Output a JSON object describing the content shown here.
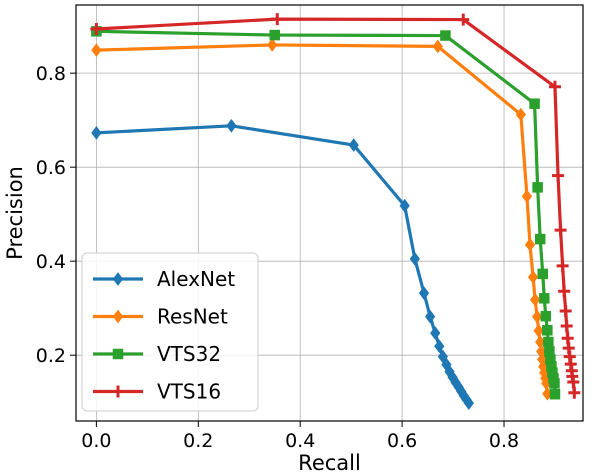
{
  "chart_data": {
    "type": "line",
    "xlabel": "Recall",
    "ylabel": "Precision",
    "xlim": [
      -0.04,
      0.955
    ],
    "ylim": [
      0.06,
      0.945
    ],
    "xticks": [
      0.0,
      0.2,
      0.4,
      0.6,
      0.8
    ],
    "xtick_labels": [
      "0.0",
      "0.2",
      "0.4",
      "0.6",
      "0.8"
    ],
    "yticks": [
      0.2,
      0.4,
      0.6,
      0.8
    ],
    "ytick_labels": [
      "0.2",
      "0.4",
      "0.6",
      "0.8"
    ],
    "grid": true,
    "legend_position": "lower-left",
    "series": [
      {
        "name": "AlexNet",
        "color": "#1f77b4",
        "marker": "diamond",
        "x": [
          0.0,
          0.265,
          0.505,
          0.605,
          0.625,
          0.643,
          0.655,
          0.665,
          0.673,
          0.68,
          0.687,
          0.693,
          0.699,
          0.705,
          0.711,
          0.716,
          0.721,
          0.726,
          0.731
        ],
        "y": [
          0.673,
          0.688,
          0.647,
          0.518,
          0.405,
          0.332,
          0.282,
          0.247,
          0.219,
          0.197,
          0.18,
          0.165,
          0.153,
          0.142,
          0.132,
          0.123,
          0.114,
          0.106,
          0.098
        ]
      },
      {
        "name": "ResNet",
        "color": "#ff7f0e",
        "marker": "diamond",
        "x": [
          0.0,
          0.345,
          0.67,
          0.833,
          0.845,
          0.851,
          0.857,
          0.861,
          0.865,
          0.868,
          0.871,
          0.873,
          0.875,
          0.877,
          0.879,
          0.881,
          0.883,
          0.885
        ],
        "y": [
          0.849,
          0.86,
          0.857,
          0.712,
          0.538,
          0.435,
          0.366,
          0.318,
          0.282,
          0.252,
          0.228,
          0.208,
          0.191,
          0.176,
          0.163,
          0.151,
          0.14,
          0.118
        ]
      },
      {
        "name": "VTS32",
        "color": "#2ca02c",
        "marker": "square",
        "x": [
          0.0,
          0.35,
          0.685,
          0.86,
          0.866,
          0.871,
          0.876,
          0.879,
          0.882,
          0.885,
          0.887,
          0.889,
          0.891,
          0.893,
          0.895,
          0.897,
          0.899,
          0.9
        ],
        "y": [
          0.889,
          0.881,
          0.88,
          0.735,
          0.557,
          0.447,
          0.373,
          0.321,
          0.283,
          0.253,
          0.228,
          0.208,
          0.191,
          0.176,
          0.163,
          0.151,
          0.14,
          0.117
        ]
      },
      {
        "name": "VTS16",
        "color": "#d62728",
        "marker": "plus",
        "x": [
          0.0,
          0.355,
          0.72,
          0.9,
          0.906,
          0.911,
          0.915,
          0.918,
          0.921,
          0.923,
          0.925,
          0.927,
          0.929,
          0.931,
          0.933,
          0.934,
          0.936,
          0.938
        ],
        "y": [
          0.894,
          0.915,
          0.914,
          0.771,
          0.582,
          0.466,
          0.39,
          0.336,
          0.294,
          0.262,
          0.236,
          0.215,
          0.197,
          0.181,
          0.167,
          0.155,
          0.143,
          0.12
        ]
      }
    ]
  }
}
